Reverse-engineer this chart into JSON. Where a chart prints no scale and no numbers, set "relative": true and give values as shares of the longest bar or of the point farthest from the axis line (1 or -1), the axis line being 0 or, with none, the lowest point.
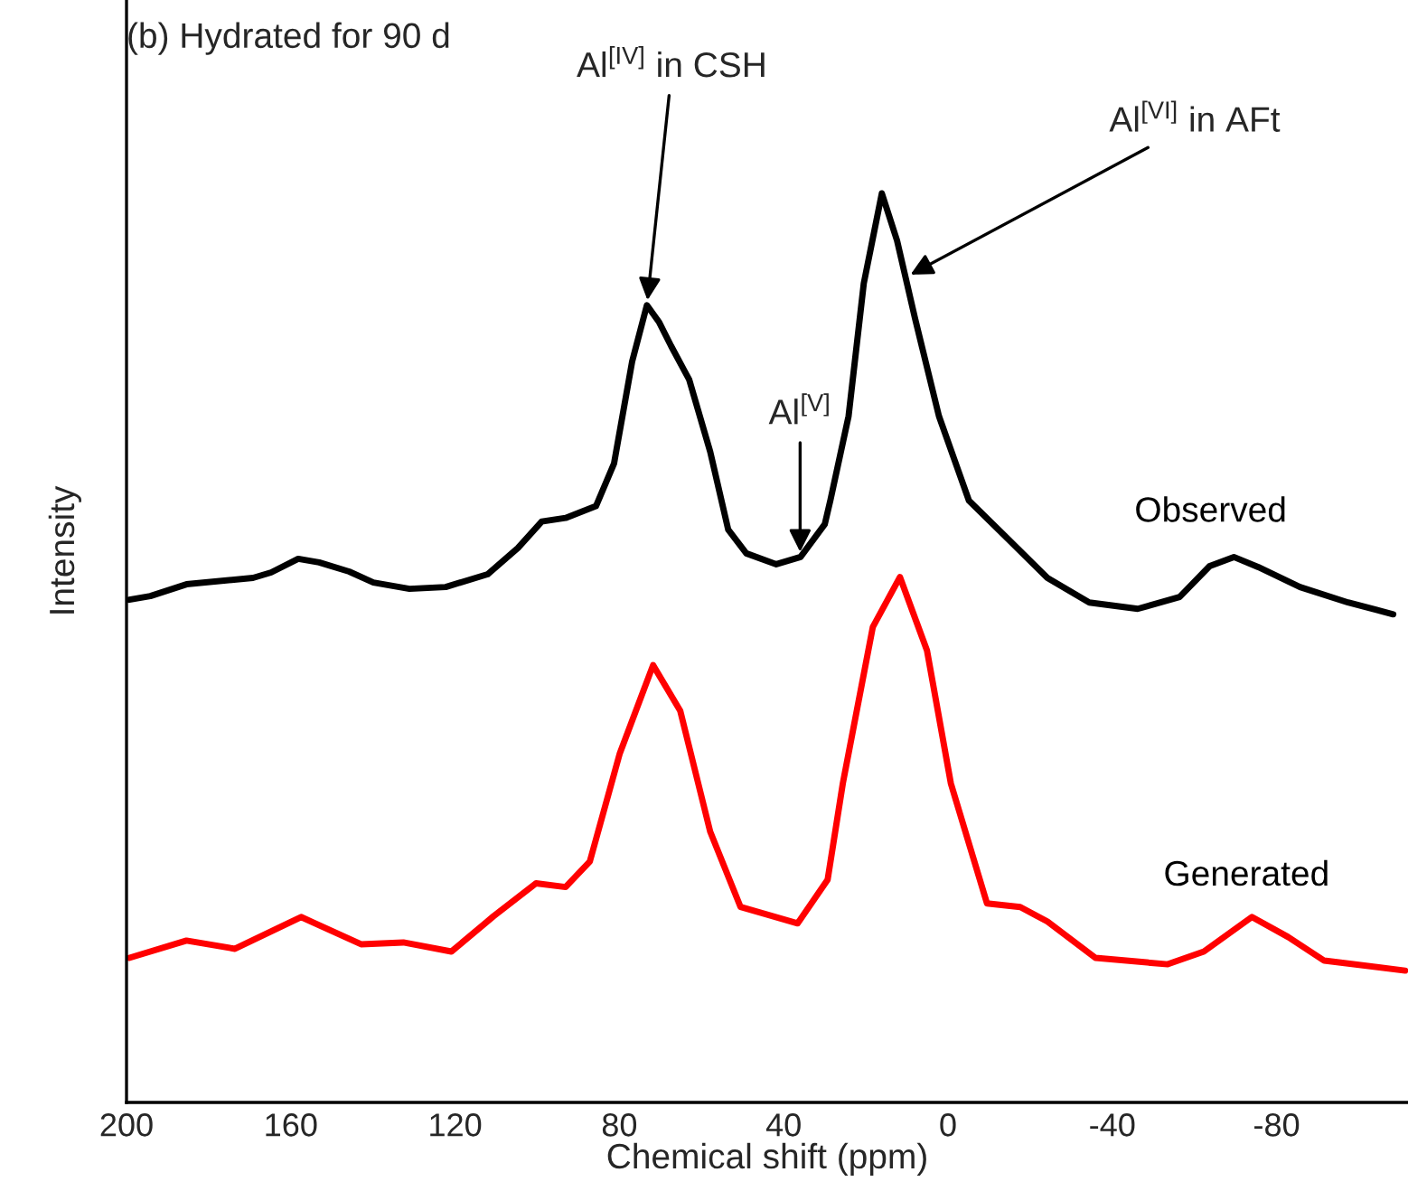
{
  "chart_data": {
    "type": "line",
    "title": "(b) Hydrated for 90 d",
    "xlabel": "Chemical shift (ppm)",
    "ylabel": "Intensity",
    "relative": true,
    "xlim": [
      200,
      -112
    ],
    "xticks": [
      200,
      160,
      120,
      80,
      40,
      0,
      {
        "value": -40,
        "label": "-40"
      },
      {
        "value": -80,
        "label": "-80"
      }
    ],
    "grid": false,
    "legend": false,
    "marker": "none",
    "line_style": "solid",
    "series": [
      {
        "name": "Observed",
        "color": "#000000",
        "x": [
          199.3,
          194.2,
          185.4,
          169.2,
          164.8,
          158.2,
          153.1,
          145.8,
          139.9,
          131.1,
          122.3,
          112.1,
          104.7,
          98.9,
          93.1,
          85.7,
          81.3,
          76.9,
          73.3,
          70.3,
          67.4,
          63.0,
          57.9,
          53.5,
          49.1,
          41.8,
          35.9,
          30.0,
          28.6,
          24.2,
          20.5,
          16.1,
          12.4,
          8.0,
          2.2,
          -5.1,
          -13.9,
          -24.2,
          -34.4,
          -46.2,
          -56.4,
          -63.7,
          -69.6,
          -75.5,
          -85.7,
          -97.4,
          -108.4
        ],
        "values": [
          0.553,
          0.557,
          0.57,
          0.577,
          0.583,
          0.598,
          0.594,
          0.584,
          0.572,
          0.565,
          0.567,
          0.581,
          0.61,
          0.639,
          0.643,
          0.656,
          0.703,
          0.815,
          0.877,
          0.858,
          0.832,
          0.795,
          0.716,
          0.63,
          0.604,
          0.592,
          0.6,
          0.636,
          0.663,
          0.755,
          0.901,
          1.0,
          0.948,
          0.862,
          0.755,
          0.662,
          0.623,
          0.577,
          0.55,
          0.543,
          0.556,
          0.59,
          0.6,
          0.589,
          0.567,
          0.55,
          0.537
        ]
      },
      {
        "name": "Generated",
        "color": "#ff0000",
        "x": [
          199.3,
          185.4,
          173.6,
          157.5,
          142.9,
          132.6,
          120.9,
          110.6,
          100.3,
          93.1,
          87.2,
          79.9,
          71.8,
          65.2,
          57.9,
          50.5,
          36.6,
          29.3,
          25.6,
          18.3,
          11.7,
          5.1,
          -0.7,
          -9.5,
          -17.6,
          -24.2,
          -35.9,
          -53.5,
          -62.3,
          -74.0,
          -82.8,
          -91.6,
          -111.3
        ],
        "values": [
          0.159,
          0.178,
          0.169,
          0.204,
          0.174,
          0.176,
          0.166,
          0.205,
          0.241,
          0.237,
          0.265,
          0.384,
          0.481,
          0.431,
          0.298,
          0.215,
          0.197,
          0.245,
          0.351,
          0.523,
          0.578,
          0.497,
          0.351,
          0.219,
          0.215,
          0.199,
          0.159,
          0.152,
          0.166,
          0.204,
          0.182,
          0.156,
          0.145
        ]
      }
    ],
    "annotations": [
      {
        "text": "Al$^{[IV]}$ in CSH",
        "x": 73.3,
        "y": 0.877
      },
      {
        "text": "Al$^{[V]}$",
        "x": 36.0,
        "y": 0.6
      },
      {
        "text": "Al$^{[VI]}$ in AFt",
        "x": 10.2,
        "y": 0.908
      }
    ]
  }
}
